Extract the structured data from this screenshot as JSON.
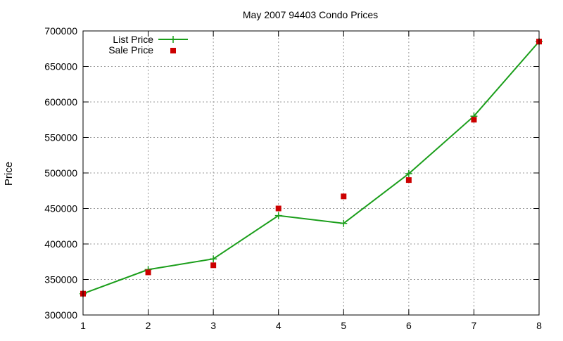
{
  "chart_data": {
    "type": "line",
    "title": "May 2007 94403 Condo Prices",
    "xlabel": "",
    "ylabel": "Price",
    "xlim": [
      1,
      8
    ],
    "ylim": [
      300000,
      700000
    ],
    "xticks": [
      1,
      2,
      3,
      4,
      5,
      6,
      7,
      8
    ],
    "yticks": [
      300000,
      350000,
      400000,
      450000,
      500000,
      550000,
      600000,
      650000,
      700000
    ],
    "grid": true,
    "legend_position": "top-left",
    "series": [
      {
        "name": "List Price",
        "style": "line-with-plus-markers",
        "color": "#1a9e1a",
        "x": [
          1,
          2,
          3,
          4,
          5,
          6,
          7,
          8
        ],
        "y": [
          330000,
          364000,
          379000,
          440000,
          429000,
          499000,
          580000,
          685000
        ]
      },
      {
        "name": "Sale Price",
        "style": "square-markers",
        "color": "#cc0000",
        "x": [
          1,
          2,
          3,
          4,
          5,
          6,
          7,
          8
        ],
        "y": [
          330000,
          360000,
          370000,
          450000,
          467000,
          490000,
          575000,
          685000
        ]
      }
    ]
  }
}
